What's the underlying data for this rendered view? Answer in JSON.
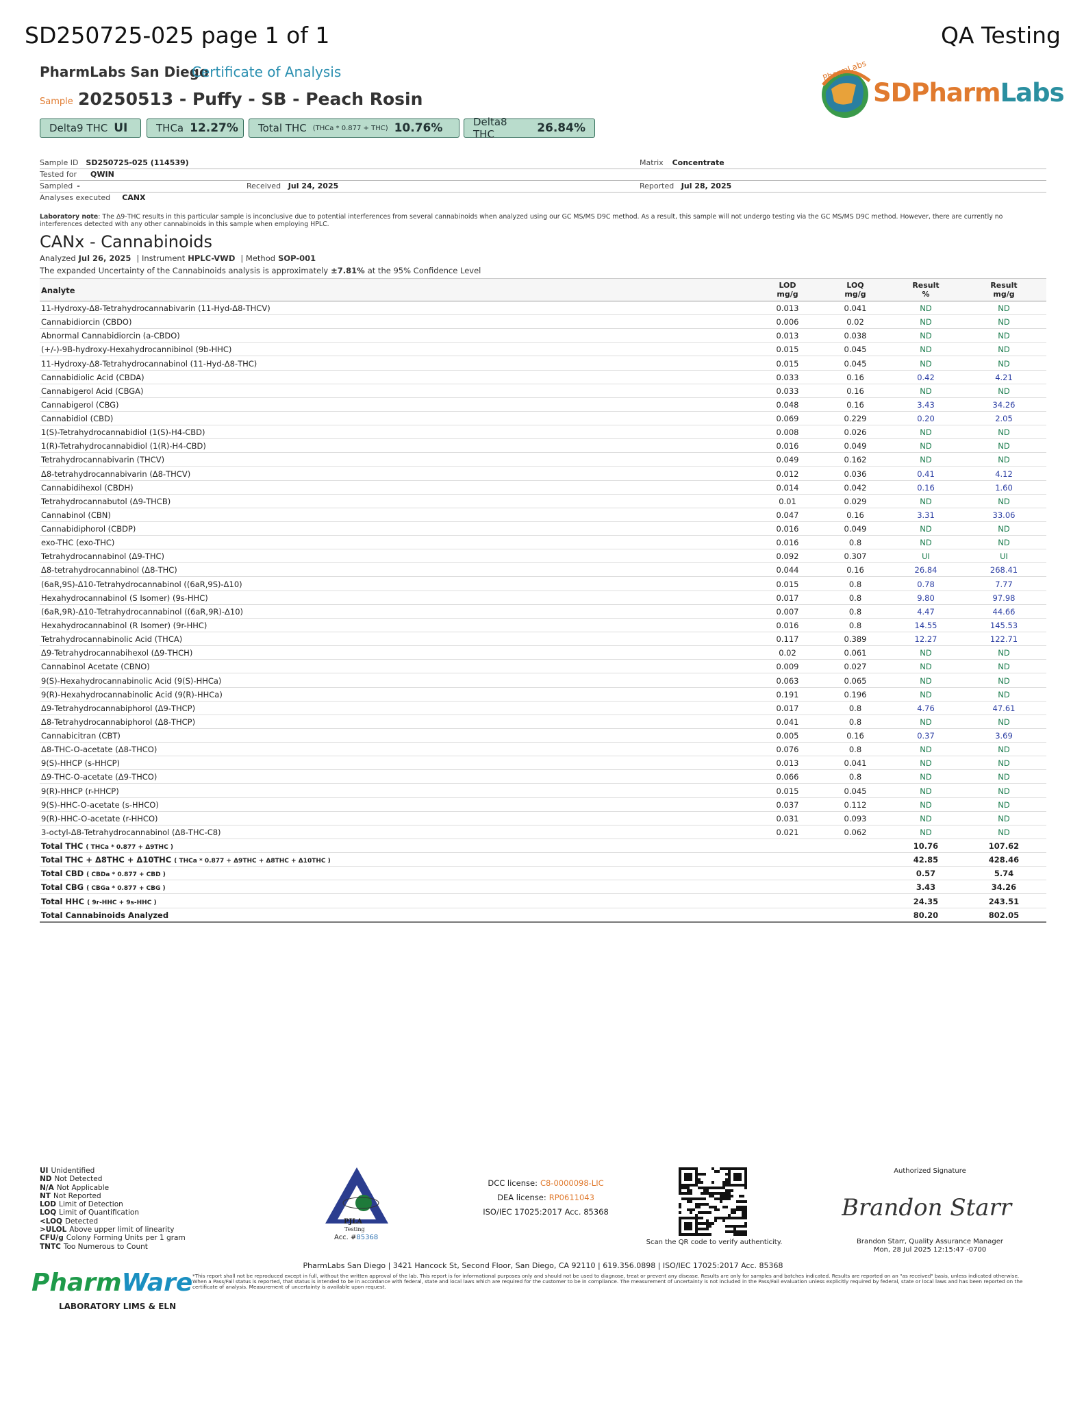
{
  "header": {
    "doc_id": "SD250725-025 page 1 of 1",
    "qa": "QA Testing",
    "lab": "PharmLabs San Diego",
    "coa": "Certificate of Analysis",
    "sample_label": "Sample",
    "sample_name": "20250513 - Puffy - SB - Peach Rosin",
    "logo": {
      "arc": "PharmLabs",
      "sd": "SD",
      "pharm": "Pharm",
      "labs": "Labs"
    }
  },
  "badges": [
    {
      "label": "Delta9 THC",
      "value": "UI"
    },
    {
      "label": "THCa",
      "value": "12.27%"
    },
    {
      "label": "Total THC",
      "formula": "(THCa * 0.877 + THC)",
      "value": "10.76%"
    },
    {
      "label": "Delta8 THC",
      "value": "26.84%"
    }
  ],
  "info": {
    "sample_id": {
      "label": "Sample ID",
      "value": "SD250725-025 (114539)"
    },
    "matrix": {
      "label": "Matrix",
      "value": "Concentrate"
    },
    "tested_for": {
      "label": "Tested for",
      "value": "QWIN"
    },
    "sampled": {
      "label": "Sampled",
      "value": "-"
    },
    "received": {
      "label": "Received",
      "value": "Jul 24, 2025"
    },
    "reported": {
      "label": "Reported",
      "value": "Jul 28, 2025"
    },
    "analyses": {
      "label": "Analyses executed",
      "value": "CANX"
    }
  },
  "note": {
    "label": "Laboratory note",
    "text": ": The Δ9-THC results in this particular sample is inconclusive due to potential interferences from several cannabinoids when analyzed using our GC MS/MS D9C method. As a result, this sample will not undergo testing via the GC MS/MS D9C method. However, there are currently no interferences detected with any other cannabinoids in this sample when employing HPLC."
  },
  "section": {
    "title": "CANx - Cannabinoids",
    "analyzed": {
      "label": "Analyzed",
      "value": "Jul 26, 2025"
    },
    "instrument": {
      "label": "| Instrument",
      "value": "HPLC-VWD"
    },
    "method": {
      "label": "| Method",
      "value": "SOP-001"
    },
    "uncertainty": [
      "The expanded Uncertainty of the Cannabinoids analysis is approximately",
      "±7.81%",
      "at the 95% Confidence Level"
    ]
  },
  "table": {
    "headers": [
      [
        "Analyte"
      ],
      [
        "LOD",
        "mg/g"
      ],
      [
        "LOQ",
        "mg/g"
      ],
      [
        "Result",
        "%"
      ],
      [
        "Result",
        "mg/g"
      ]
    ],
    "rows": [
      [
        "11-Hydroxy-Δ8-Tetrahydrocannabivarin (11-Hyd-Δ8-THCV)",
        "0.013",
        "0.041",
        "ND",
        "ND"
      ],
      [
        "Cannabidiorcin (CBDO)",
        "0.006",
        "0.02",
        "ND",
        "ND"
      ],
      [
        "Abnormal Cannabidiorcin (a-CBDO)",
        "0.013",
        "0.038",
        "ND",
        "ND"
      ],
      [
        "(+/-)-9B-hydroxy-Hexahydrocannibinol (9b-HHC)",
        "0.015",
        "0.045",
        "ND",
        "ND"
      ],
      [
        "11-Hydroxy-Δ8-Tetrahydrocannabinol (11-Hyd-Δ8-THC)",
        "0.015",
        "0.045",
        "ND",
        "ND"
      ],
      [
        "Cannabidiolic Acid (CBDA)",
        "0.033",
        "0.16",
        "0.42",
        "4.21"
      ],
      [
        "Cannabigerol Acid (CBGA)",
        "0.033",
        "0.16",
        "ND",
        "ND"
      ],
      [
        "Cannabigerol (CBG)",
        "0.048",
        "0.16",
        "3.43",
        "34.26"
      ],
      [
        "Cannabidiol (CBD)",
        "0.069",
        "0.229",
        "0.20",
        "2.05"
      ],
      [
        "1(S)-Tetrahydrocannabidiol (1(S)-H4-CBD)",
        "0.008",
        "0.026",
        "ND",
        "ND"
      ],
      [
        "1(R)-Tetrahydrocannabidiol (1(R)-H4-CBD)",
        "0.016",
        "0.049",
        "ND",
        "ND"
      ],
      [
        "Tetrahydrocannabivarin (THCV)",
        "0.049",
        "0.162",
        "ND",
        "ND"
      ],
      [
        "Δ8-tetrahydrocannabivarin (Δ8-THCV)",
        "0.012",
        "0.036",
        "0.41",
        "4.12"
      ],
      [
        "Cannabidihexol (CBDH)",
        "0.014",
        "0.042",
        "0.16",
        "1.60"
      ],
      [
        "Tetrahydrocannabutol (Δ9-THCB)",
        "0.01",
        "0.029",
        "ND",
        "ND"
      ],
      [
        "Cannabinol (CBN)",
        "0.047",
        "0.16",
        "3.31",
        "33.06"
      ],
      [
        "Cannabidiphorol (CBDP)",
        "0.016",
        "0.049",
        "ND",
        "ND"
      ],
      [
        "exo-THC (exo-THC)",
        "0.016",
        "0.8",
        "ND",
        "ND"
      ],
      [
        "Tetrahydrocannabinol (Δ9-THC)",
        "0.092",
        "0.307",
        "UI",
        "UI"
      ],
      [
        "Δ8-tetrahydrocannabinol (Δ8-THC)",
        "0.044",
        "0.16",
        "26.84",
        "268.41"
      ],
      [
        "(6aR,9S)-Δ10-Tetrahydrocannabinol ((6aR,9S)-Δ10)",
        "0.015",
        "0.8",
        "0.78",
        "7.77"
      ],
      [
        "Hexahydrocannabinol (S Isomer) (9s-HHC)",
        "0.017",
        "0.8",
        "9.80",
        "97.98"
      ],
      [
        "(6aR,9R)-Δ10-Tetrahydrocannabinol ((6aR,9R)-Δ10)",
        "0.007",
        "0.8",
        "4.47",
        "44.66"
      ],
      [
        "Hexahydrocannabinol (R Isomer) (9r-HHC)",
        "0.016",
        "0.8",
        "14.55",
        "145.53"
      ],
      [
        "Tetrahydrocannabinolic Acid (THCA)",
        "0.117",
        "0.389",
        "12.27",
        "122.71"
      ],
      [
        "Δ9-Tetrahydrocannabihexol (Δ9-THCH)",
        "0.02",
        "0.061",
        "ND",
        "ND"
      ],
      [
        "Cannabinol Acetate (CBNO)",
        "0.009",
        "0.027",
        "ND",
        "ND"
      ],
      [
        "9(S)-Hexahydrocannabinolic Acid (9(S)-HHCa)",
        "0.063",
        "0.065",
        "ND",
        "ND"
      ],
      [
        "9(R)-Hexahydrocannabinolic Acid (9(R)-HHCa)",
        "0.191",
        "0.196",
        "ND",
        "ND"
      ],
      [
        "Δ9-Tetrahydrocannabiphorol (Δ9-THCP)",
        "0.017",
        "0.8",
        "4.76",
        "47.61"
      ],
      [
        "Δ8-Tetrahydrocannabiphorol (Δ8-THCP)",
        "0.041",
        "0.8",
        "ND",
        "ND"
      ],
      [
        "Cannabicitran (CBT)",
        "0.005",
        "0.16",
        "0.37",
        "3.69"
      ],
      [
        "Δ8-THC-O-acetate (Δ8-THCO)",
        "0.076",
        "0.8",
        "ND",
        "ND"
      ],
      [
        "9(S)-HHCP (s-HHCP)",
        "0.013",
        "0.041",
        "ND",
        "ND"
      ],
      [
        "Δ9-THC-O-acetate (Δ9-THCO)",
        "0.066",
        "0.8",
        "ND",
        "ND"
      ],
      [
        "9(R)-HHCP (r-HHCP)",
        "0.015",
        "0.045",
        "ND",
        "ND"
      ],
      [
        "9(S)-HHC-O-acetate (s-HHCO)",
        "0.037",
        "0.112",
        "ND",
        "ND"
      ],
      [
        "9(R)-HHC-O-acetate (r-HHCO)",
        "0.031",
        "0.093",
        "ND",
        "ND"
      ],
      [
        "3-octyl-Δ8-Tetrahydrocannabinol (Δ8-THC-C8)",
        "0.021",
        "0.062",
        "ND",
        "ND"
      ]
    ],
    "totals": [
      {
        "name": "Total THC",
        "formula": "( THCa * 0.877 + Δ9THC )",
        "pct": "10.76",
        "mg": "107.62"
      },
      {
        "name": "Total THC + Δ8THC + Δ10THC",
        "formula": "( THCa * 0.877 + Δ9THC + Δ8THC + Δ10THC )",
        "pct": "42.85",
        "mg": "428.46"
      },
      {
        "name": "Total CBD",
        "formula": "( CBDa * 0.877 + CBD )",
        "pct": "0.57",
        "mg": "5.74"
      },
      {
        "name": "Total CBG",
        "formula": "( CBGa * 0.877 + CBG )",
        "pct": "3.43",
        "mg": "34.26"
      },
      {
        "name": "Total HHC",
        "formula": "( 9r-HHC + 9s-HHC )",
        "pct": "24.35",
        "mg": "243.51"
      },
      {
        "name": "Total Cannabinoids Analyzed",
        "pct": "80.20",
        "mg": "802.05"
      }
    ]
  },
  "footer": {
    "legend": [
      [
        "UI",
        "Unidentified"
      ],
      [
        "ND",
        "Not Detected"
      ],
      [
        "N/A",
        "Not Applicable"
      ],
      [
        "NT",
        "Not Reported"
      ],
      [
        "LOD",
        "Limit of Detection"
      ],
      [
        "LOQ",
        "Limit of Quantification"
      ],
      [
        "<LOQ",
        "Detected"
      ],
      [
        ">ULOL",
        "Above upper limit of linearity"
      ],
      [
        "CFU/g",
        "Colony Forming Units per 1 gram"
      ],
      [
        "TNTC",
        "Too Numerous to Count"
      ]
    ],
    "pjla": {
      "name": "PJLA",
      "sub": "Testing",
      "acc_label": "Acc. #",
      "acc": "85368"
    },
    "licenses": [
      [
        "DCC license:",
        "C8-0000098-LIC"
      ],
      [
        "DEA license:",
        "RP0611043"
      ]
    ],
    "iso": "ISO/IEC 17025:2017 Acc. 85368",
    "qr_caption": "Scan the QR code to verify authenticity.",
    "signature": {
      "label": "Authorized Signature",
      "script": "Brandon Starr",
      "signer": "Brandon Starr, Quality Assurance Manager",
      "date": "Mon, 28 Jul 2025 12:15:47 -0700"
    },
    "address": "PharmLabs San Diego | 3421 Hancock St, Second Floor, San Diego, CA 92110 | 619.356.0898 | ISO/IEC 17025:2017 Acc. 85368",
    "disclaimer": "*This report shall not be reproduced except in full, without the written approval of the lab. This report is for informational purposes only and should not be used to diagnose, treat or prevent any disease. Results are only for samples and batches indicated. Results are reported on an \"as received\" basis, unless indicated otherwise. When a Pass/Fail status is reported, that status is intended to be in accordance with federal, state and local laws which are required for the customer to be in compliance. The measurement of uncertainty is not included in the Pass/Fail evaluation unless explicitly required by federal, state or local laws and has been reported on the certificate of analysis. Measurement of uncertainty is available upon request.",
    "pharmware": {
      "pharm": "Pharm",
      "ware": "Ware",
      "sub": "LABORATORY LIMS & ELN"
    }
  }
}
